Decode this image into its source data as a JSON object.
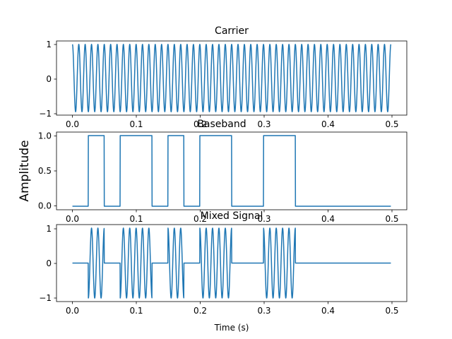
{
  "figure": {
    "shared_ylabel": "Amplitude",
    "shared_xlabel": "Time (s)"
  },
  "chart_data": [
    {
      "type": "line",
      "title": "Carrier",
      "xlabel": "",
      "ylabel": "",
      "xlim": [
        -0.025,
        0.525
      ],
      "ylim": [
        -1.1,
        1.1
      ],
      "x_ticks": [
        "0.0",
        "0.1",
        "0.2",
        "0.3",
        "0.4",
        "0.5"
      ],
      "y_ticks": [
        "1",
        "0",
        "−1"
      ],
      "line_color": "#1f77b4",
      "grid": false,
      "series": [
        {
          "kind": "cosine",
          "frequency_hz": 100,
          "x_start": 0.0,
          "x_end": 0.5,
          "points": 2000
        }
      ]
    },
    {
      "type": "line",
      "title": "Baseband",
      "xlabel": "",
      "ylabel": "",
      "xlim": [
        -0.025,
        0.525
      ],
      "ylim": [
        -0.05,
        1.05
      ],
      "x_ticks": [
        "0.0",
        "0.1",
        "0.2",
        "0.3",
        "0.4",
        "0.5"
      ],
      "y_ticks": [
        "1.0",
        "0.5",
        "0.0"
      ],
      "line_color": "#1f77b4",
      "grid": false,
      "series": [
        {
          "kind": "bits",
          "bit_duration_s": 0.025,
          "bits": [
            0,
            1,
            0,
            1,
            1,
            0,
            1,
            0,
            1,
            1,
            0,
            0,
            1,
            1,
            0,
            0,
            0,
            0,
            0,
            0
          ]
        }
      ]
    },
    {
      "type": "line",
      "title": "Mixed Signal",
      "xlabel": "Time (s)",
      "ylabel": "",
      "xlim": [
        -0.025,
        0.525
      ],
      "ylim": [
        -1.1,
        1.1
      ],
      "x_ticks": [
        "0.0",
        "0.1",
        "0.2",
        "0.3",
        "0.4",
        "0.5"
      ],
      "y_ticks": [
        "1",
        "0",
        "−1"
      ],
      "line_color": "#1f77b4",
      "grid": false,
      "series": [
        {
          "kind": "product",
          "of": [
            "Carrier",
            "Baseband"
          ]
        }
      ]
    }
  ]
}
